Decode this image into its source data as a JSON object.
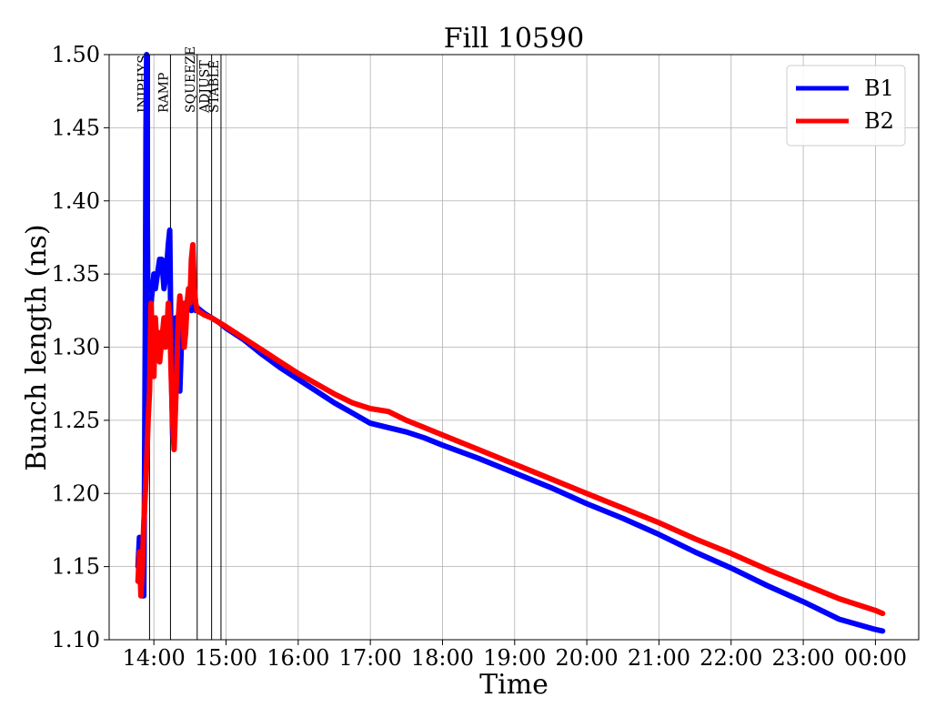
{
  "chart_data": {
    "type": "line",
    "title": "Fill 10590",
    "xlabel": "Time",
    "ylabel": "Bunch length (ns)",
    "x_unit": "hours (clock time, 24h = 00:00 next day)",
    "xlim": [
      13.38,
      24.6
    ],
    "ylim": [
      1.1,
      1.5
    ],
    "grid": true,
    "legend_position": "top-right",
    "x_ticks": [
      {
        "value": 14,
        "label": "14:00"
      },
      {
        "value": 15,
        "label": "15:00"
      },
      {
        "value": 16,
        "label": "16:00"
      },
      {
        "value": 17,
        "label": "17:00"
      },
      {
        "value": 18,
        "label": "18:00"
      },
      {
        "value": 19,
        "label": "19:00"
      },
      {
        "value": 20,
        "label": "20:00"
      },
      {
        "value": 21,
        "label": "21:00"
      },
      {
        "value": 22,
        "label": "22:00"
      },
      {
        "value": 23,
        "label": "23:00"
      },
      {
        "value": 24,
        "label": "00:00"
      }
    ],
    "y_ticks": [
      {
        "value": 1.1,
        "label": "1.10"
      },
      {
        "value": 1.15,
        "label": "1.15"
      },
      {
        "value": 1.2,
        "label": "1.20"
      },
      {
        "value": 1.25,
        "label": "1.25"
      },
      {
        "value": 1.3,
        "label": "1.30"
      },
      {
        "value": 1.35,
        "label": "1.35"
      },
      {
        "value": 1.4,
        "label": "1.40"
      },
      {
        "value": 1.45,
        "label": "1.45"
      },
      {
        "value": 1.5,
        "label": "1.50"
      }
    ],
    "phases": [
      {
        "label": "INJPHYS",
        "x": 13.94
      },
      {
        "label": "RAMP",
        "x": 14.23
      },
      {
        "label": "SQUEEZE",
        "x": 14.6
      },
      {
        "label": "ADJUST",
        "x": 14.8
      },
      {
        "label": "STABLE",
        "x": 14.93
      }
    ],
    "series": [
      {
        "name": "B1",
        "color": "#0000ff",
        "x": [
          13.78,
          13.8,
          13.82,
          13.84,
          13.85,
          13.86,
          13.87,
          13.88,
          13.89,
          13.9,
          13.91,
          13.92,
          13.93,
          13.94,
          13.96,
          13.98,
          14.0,
          14.02,
          14.05,
          14.08,
          14.11,
          14.14,
          14.17,
          14.2,
          14.22,
          14.24,
          14.26,
          14.28,
          14.3,
          14.32,
          14.34,
          14.36,
          14.38,
          14.4,
          14.42,
          14.44,
          14.46,
          14.48,
          14.5,
          14.52,
          14.55,
          14.58,
          14.6,
          14.7,
          14.8,
          14.9,
          15.0,
          15.25,
          15.5,
          15.75,
          16.0,
          16.25,
          16.5,
          16.75,
          17.0,
          17.25,
          17.5,
          17.75,
          18.0,
          18.5,
          19.0,
          19.5,
          20.0,
          20.5,
          21.0,
          21.5,
          22.0,
          22.5,
          23.0,
          23.5,
          24.0,
          24.1
        ],
        "y": [
          1.15,
          1.17,
          1.14,
          1.13,
          1.16,
          1.13,
          1.21,
          1.31,
          1.45,
          1.5,
          1.39,
          1.3,
          1.27,
          1.3,
          1.33,
          1.34,
          1.35,
          1.34,
          1.35,
          1.36,
          1.36,
          1.34,
          1.35,
          1.37,
          1.38,
          1.29,
          1.24,
          1.3,
          1.32,
          1.31,
          1.3,
          1.27,
          1.3,
          1.32,
          1.33,
          1.32,
          1.33,
          1.33,
          1.33,
          1.325,
          1.33,
          1.325,
          1.327,
          1.323,
          1.32,
          1.317,
          1.313,
          1.305,
          1.295,
          1.286,
          1.278,
          1.27,
          1.262,
          1.255,
          1.248,
          1.245,
          1.242,
          1.238,
          1.233,
          1.224,
          1.214,
          1.204,
          1.193,
          1.183,
          1.172,
          1.16,
          1.149,
          1.137,
          1.126,
          1.114,
          1.107,
          1.106
        ]
      },
      {
        "name": "B2",
        "color": "#ff0000",
        "x": [
          13.78,
          13.8,
          13.82,
          13.84,
          13.86,
          13.88,
          13.9,
          13.92,
          13.94,
          13.96,
          13.98,
          14.0,
          14.02,
          14.04,
          14.06,
          14.08,
          14.1,
          14.12,
          14.14,
          14.16,
          14.18,
          14.2,
          14.22,
          14.24,
          14.26,
          14.28,
          14.3,
          14.32,
          14.34,
          14.36,
          14.38,
          14.4,
          14.42,
          14.44,
          14.46,
          14.48,
          14.5,
          14.52,
          14.54,
          14.56,
          14.58,
          14.6,
          14.7,
          14.8,
          14.9,
          15.0,
          15.25,
          15.5,
          15.75,
          16.0,
          16.25,
          16.5,
          16.75,
          17.0,
          17.25,
          17.5,
          17.75,
          18.0,
          18.5,
          19.0,
          19.5,
          20.0,
          20.5,
          21.0,
          21.5,
          22.0,
          22.5,
          23.0,
          23.5,
          24.0,
          24.1
        ],
        "y": [
          1.14,
          1.16,
          1.13,
          1.15,
          1.18,
          1.2,
          1.22,
          1.25,
          1.27,
          1.33,
          1.3,
          1.28,
          1.32,
          1.3,
          1.31,
          1.29,
          1.3,
          1.31,
          1.32,
          1.3,
          1.31,
          1.33,
          1.32,
          1.28,
          1.25,
          1.23,
          1.26,
          1.29,
          1.32,
          1.335,
          1.32,
          1.33,
          1.3,
          1.31,
          1.33,
          1.34,
          1.33,
          1.36,
          1.37,
          1.34,
          1.33,
          1.325,
          1.322,
          1.32,
          1.317,
          1.314,
          1.306,
          1.298,
          1.29,
          1.282,
          1.275,
          1.268,
          1.262,
          1.258,
          1.256,
          1.25,
          1.245,
          1.24,
          1.23,
          1.22,
          1.21,
          1.2,
          1.19,
          1.18,
          1.169,
          1.159,
          1.148,
          1.138,
          1.128,
          1.12,
          1.118
        ]
      }
    ]
  }
}
